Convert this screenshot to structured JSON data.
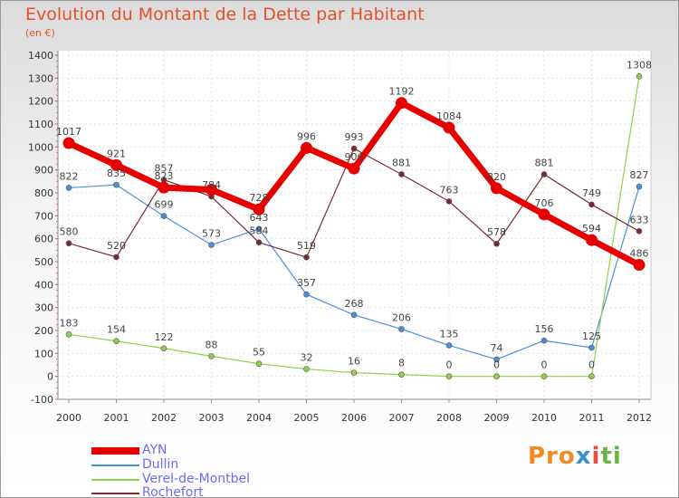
{
  "title": "Evolution du Montant de la Dette par Habitant",
  "subtitle": "(en €)",
  "logo": {
    "part1": "Pro",
    "part2": "x",
    "part3": "i",
    "part4": "ti"
  },
  "chart_data": {
    "type": "line",
    "title": "Evolution du Montant de la Dette par Habitant",
    "subtitle": "(en €)",
    "xlabel": "",
    "ylabel": "",
    "x": [
      2000,
      2001,
      2002,
      2003,
      2004,
      2005,
      2006,
      2007,
      2008,
      2009,
      2010,
      2011,
      2012
    ],
    "ylim": [
      -100,
      1400
    ],
    "yticks": [
      -100,
      0,
      100,
      200,
      300,
      400,
      500,
      600,
      700,
      800,
      900,
      1000,
      1100,
      1200,
      1300,
      1400
    ],
    "grid": true,
    "legend": "bottom-left",
    "series": [
      {
        "name": "AYN",
        "color": "#e60000",
        "values": [
          1017,
          921,
          823,
          814,
          728,
          996,
          906,
          1192,
          1084,
          820,
          706,
          594,
          486
        ],
        "labels": [
          "1017",
          "921",
          "823",
          "",
          "728",
          "996",
          "906",
          "1192",
          "1084",
          "820",
          "706",
          "594",
          "486"
        ]
      },
      {
        "name": "Dullin",
        "color": "#4a90d9",
        "values": [
          822,
          835,
          699,
          573,
          643,
          357,
          268,
          206,
          135,
          74,
          156,
          125,
          827
        ],
        "labels": [
          "822",
          "835",
          "699",
          "573",
          "643",
          "357",
          "268",
          "206",
          "135",
          "74",
          "156",
          "125",
          "827"
        ]
      },
      {
        "name": "Verel-de-Montbel",
        "color": "#8ed14a",
        "values": [
          183,
          154,
          122,
          88,
          55,
          32,
          16,
          8,
          0,
          0,
          0,
          0,
          1308
        ],
        "labels": [
          "183",
          "154",
          "122",
          "88",
          "55",
          "32",
          "16",
          "8",
          "0",
          "0",
          "0",
          "0",
          "1308"
        ]
      },
      {
        "name": "Rochefort",
        "color": "#7a2a32",
        "values": [
          580,
          520,
          857,
          784,
          584,
          519,
          993,
          881,
          763,
          578,
          881,
          749,
          633
        ],
        "labels": [
          "580",
          "520",
          "857",
          "784",
          "584",
          "519",
          "993",
          "881",
          "763",
          "578",
          "881",
          "749",
          "633"
        ]
      }
    ]
  }
}
